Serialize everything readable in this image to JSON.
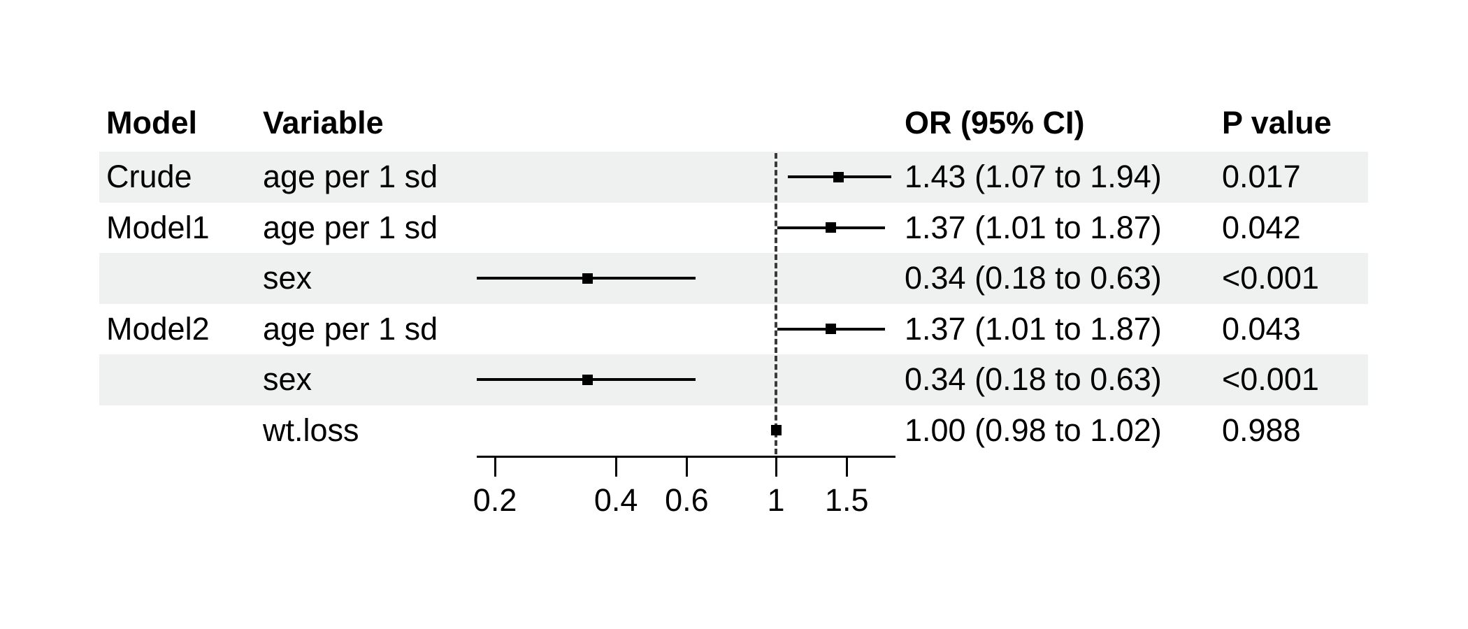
{
  "chart_data": {
    "type": "scatter",
    "subtype": "forest-plot",
    "title": "",
    "xscale": "log",
    "x_range": [
      0.18,
      1.98
    ],
    "reference_line": 1,
    "grid": false,
    "legend": "none",
    "columns": {
      "model": "Model",
      "variable": "Variable",
      "or": "OR (95% CI)",
      "p": "P value"
    },
    "x_ticks": [
      {
        "value": 0.2,
        "label": "0.2"
      },
      {
        "value": 0.4,
        "label": "0.4"
      },
      {
        "value": 0.6,
        "label": "0.6"
      },
      {
        "value": 1,
        "label": "1"
      },
      {
        "value": 1.5,
        "label": "1.5"
      }
    ],
    "rows": [
      {
        "model": "Crude",
        "variable": "age per 1 sd",
        "or_label": "1.43 (1.07 to 1.94)",
        "p": "0.017",
        "est": 1.43,
        "lo": 1.07,
        "hi": 1.94,
        "shaded": true
      },
      {
        "model": "Model1",
        "variable": "age per 1 sd",
        "or_label": "1.37 (1.01 to 1.87)",
        "p": "0.042",
        "est": 1.37,
        "lo": 1.01,
        "hi": 1.87,
        "shaded": false
      },
      {
        "model": "",
        "variable": "sex",
        "or_label": "0.34 (0.18 to 0.63)",
        "p": "<0.001",
        "est": 0.34,
        "lo": 0.18,
        "hi": 0.63,
        "shaded": true
      },
      {
        "model": "Model2",
        "variable": "age per 1 sd",
        "or_label": "1.37 (1.01 to 1.87)",
        "p": "0.043",
        "est": 1.37,
        "lo": 1.01,
        "hi": 1.87,
        "shaded": false
      },
      {
        "model": "",
        "variable": "sex",
        "or_label": "0.34 (0.18 to 0.63)",
        "p": "<0.001",
        "est": 0.34,
        "lo": 0.18,
        "hi": 0.63,
        "shaded": true
      },
      {
        "model": "",
        "variable": "wt.loss",
        "or_label": "1.00 (0.98 to 1.02)",
        "p": "0.988",
        "est": 1.0,
        "lo": 0.98,
        "hi": 1.02,
        "shaded": false
      }
    ],
    "colors": {
      "shade": "#eef1f0",
      "text": "#000000",
      "ci_line": "#000000",
      "marker": "#000000",
      "axis": "#000000",
      "reference": "#3a3a3a"
    }
  }
}
